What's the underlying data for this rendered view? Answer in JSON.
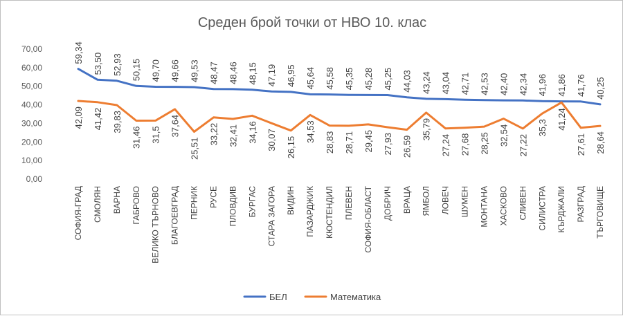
{
  "chart_data": {
    "type": "line",
    "title": "Среден брой точки от НВО 10. клас",
    "xlabel": "",
    "ylabel": "",
    "ylim": [
      0,
      70
    ],
    "yticks": [
      "0,00",
      "10,00",
      "20,00",
      "30,00",
      "40,00",
      "50,00",
      "60,00",
      "70,00"
    ],
    "grid": false,
    "legend_position": "bottom",
    "categories": [
      "СОФИЯ-ГРАД",
      "СМОЛЯН",
      "ВАРНА",
      "ГАБРОВО",
      "ВЕЛИКО ТЪРНОВО",
      "БЛАГОЕВГРАД",
      "ПЕРНИК",
      "РУСЕ",
      "ПЛОВДИВ",
      "БУРГАС",
      "СТАРА ЗАГОРА",
      "ВИДИН",
      "ПАЗАРДЖИК",
      "КЮСТЕНДИЛ",
      "ПЛЕВЕН",
      "СОФИЯ-ОБЛАСТ",
      "ДОБРИЧ",
      "ВРАЦА",
      "ЯМБОЛ",
      "ЛОВЕЧ",
      "ШУМЕН",
      "МОНТАНА",
      "ХАСКОВО",
      "СЛИВЕН",
      "СИЛИСТРА",
      "КЪРДЖАЛИ",
      "РАЗГРАД",
      "ТЪРГОВИЩЕ"
    ],
    "series": [
      {
        "name": "БЕЛ",
        "color": "#4472C4",
        "values": [
          59.34,
          53.5,
          52.93,
          50.15,
          49.7,
          49.66,
          49.53,
          48.47,
          48.46,
          48.15,
          47.19,
          46.95,
          45.64,
          45.58,
          45.35,
          45.28,
          45.25,
          44.03,
          43.24,
          43.04,
          42.71,
          42.53,
          42.4,
          42.34,
          41.96,
          41.86,
          41.76,
          40.25
        ],
        "labels": [
          "59,34",
          "53,50",
          "52,93",
          "50,15",
          "49,70",
          "49,66",
          "49,53",
          "48,47",
          "48,46",
          "48,15",
          "47,19",
          "46,95",
          "45,64",
          "45,58",
          "45,35",
          "45,28",
          "45,25",
          "44,03",
          "43,24",
          "43,04",
          "42,71",
          "42,53",
          "42,40",
          "42,34",
          "41,96",
          "41,86",
          "41,76",
          "40,25"
        ]
      },
      {
        "name": "Математика",
        "color": "#ED7D31",
        "values": [
          42.09,
          41.42,
          39.83,
          31.46,
          31.5,
          37.64,
          25.51,
          33.22,
          32.41,
          34.16,
          30.07,
          26.15,
          34.53,
          28.83,
          28.71,
          29.45,
          27.93,
          26.59,
          35.79,
          27.24,
          27.68,
          28.25,
          32.54,
          27.22,
          35.3,
          41.24,
          27.61,
          28.64
        ],
        "labels": [
          "42,09",
          "41,42",
          "39,83",
          "31,46",
          "31,5",
          "37,64",
          "25,51",
          "33,22",
          "32,41",
          "34,16",
          "30,07",
          "26,15",
          "34,53",
          "28,83",
          "28,71",
          "29,45",
          "27,93",
          "26,59",
          "35,79",
          "27,24",
          "27,68",
          "28,25",
          "32,54",
          "27,22",
          "35,3",
          "41,24",
          "27,61",
          "28,64"
        ]
      }
    ]
  }
}
